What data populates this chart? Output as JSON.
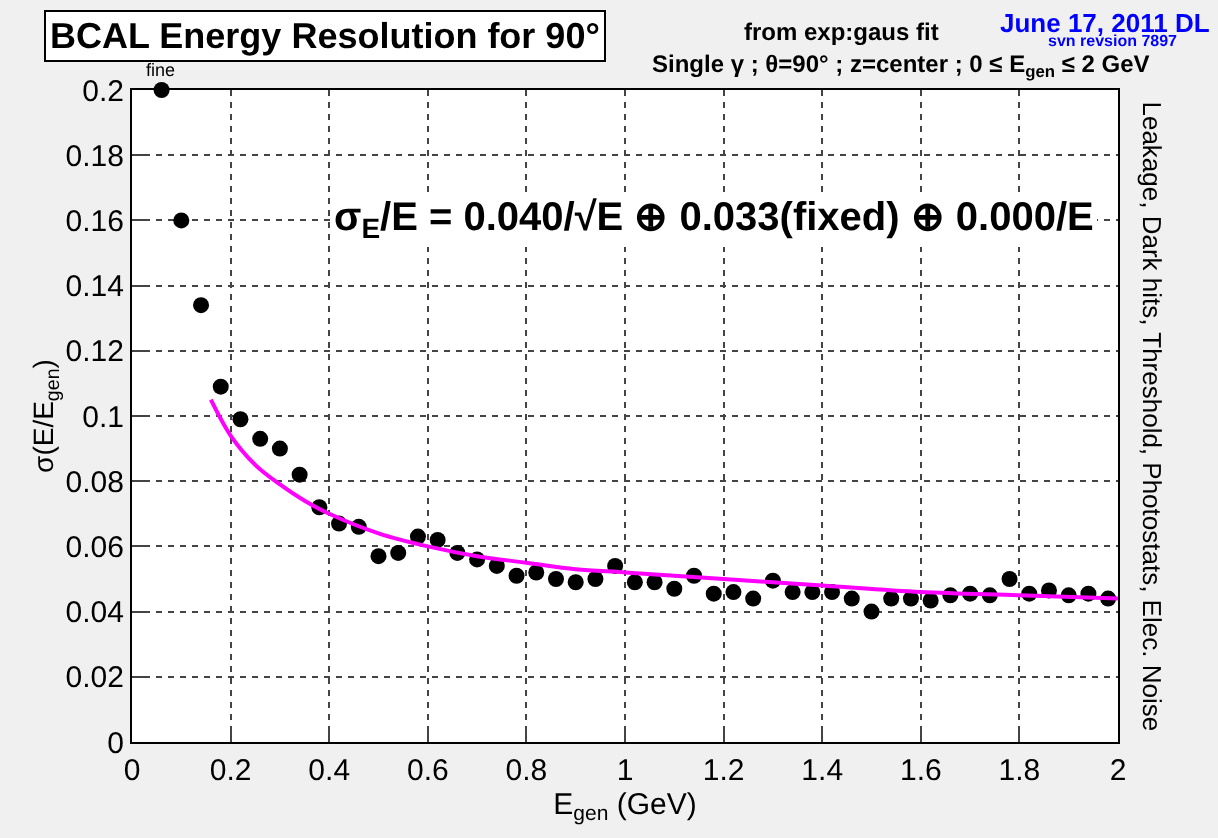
{
  "chart_data": {
    "type": "scatter",
    "title": "BCAL Energy Resolution for 90°",
    "subtitle": "from exp:gaus fit",
    "xlabel": "E$_{gen}$ (GeV)",
    "ylabel": "σ(E/E$_{gen}$)",
    "y2label": "Leakage, Dark hits, Threshold, Photostats, Elec. Noise",
    "annotations": [
      "Single γ ; θ=90° ; z=center ; 0 ≤ E$_{gen}$ ≤ 2 GeV",
      "June 17, 2011 DL",
      "svn revsion 7897",
      "σ$_{E}$/E = 0.040/√E ⊕ 0.033(fixed) ⊕ 0.000/E",
      {
        "text": "fine",
        "x": 0.06,
        "y": 0.2
      }
    ],
    "series": [
      {
        "color": "#000000",
        "marker": "circle",
        "x": [
          0.06,
          0.1,
          0.14,
          0.18,
          0.22,
          0.26,
          0.3,
          0.34,
          0.38,
          0.42,
          0.46,
          0.5,
          0.54,
          0.58,
          0.62,
          0.66,
          0.7,
          0.74,
          0.78,
          0.82,
          0.86,
          0.9,
          0.94,
          0.98,
          1.02,
          1.06,
          1.1,
          1.14,
          1.18,
          1.22,
          1.26,
          1.3,
          1.34,
          1.38,
          1.42,
          1.46,
          1.5,
          1.54,
          1.58,
          1.62,
          1.66,
          1.7,
          1.74,
          1.78,
          1.82,
          1.86,
          1.9,
          1.94,
          1.98
        ],
        "values": [
          0.2,
          0.16,
          0.134,
          0.109,
          0.099,
          0.093,
          0.09,
          0.082,
          0.072,
          0.067,
          0.066,
          0.057,
          0.058,
          0.063,
          0.062,
          0.058,
          0.056,
          0.054,
          0.051,
          0.052,
          0.05,
          0.049,
          0.05,
          0.054,
          0.049,
          0.049,
          0.047,
          0.051,
          0.0455,
          0.046,
          0.044,
          0.0495,
          0.046,
          0.046,
          0.046,
          0.044,
          0.04,
          0.044,
          0.044,
          0.0434,
          0.045,
          0.0455,
          0.045,
          0.05,
          0.0455,
          0.0465,
          0.045,
          0.0455,
          0.044
        ]
      },
      {
        "type": "line",
        "color": "#ff00ff",
        "marker": "none",
        "line_style": "solid",
        "x": [
          0.16,
          0.2,
          0.25,
          0.3,
          0.35,
          0.4,
          0.5,
          0.6,
          0.7,
          0.8,
          0.9,
          1.0,
          1.2,
          1.4,
          1.6,
          1.8,
          2.0
        ],
        "values": [
          0.105,
          0.094,
          0.085,
          0.079,
          0.074,
          0.07,
          0.064,
          0.06,
          0.057,
          0.055,
          0.053,
          0.052,
          0.05,
          0.048,
          0.046,
          0.045,
          0.044
        ]
      }
    ],
    "xlim": [
      0,
      2
    ],
    "xticks": [
      0,
      0.2,
      0.4,
      0.6,
      0.8,
      1,
      1.2,
      1.4,
      1.6,
      1.8,
      2
    ],
    "ylim": [
      0,
      0.2
    ],
    "yticks": [
      0,
      0.02,
      0.04,
      0.06,
      0.08,
      0.1,
      0.12,
      0.14,
      0.16,
      0.18,
      0.2
    ],
    "grid": true
  }
}
